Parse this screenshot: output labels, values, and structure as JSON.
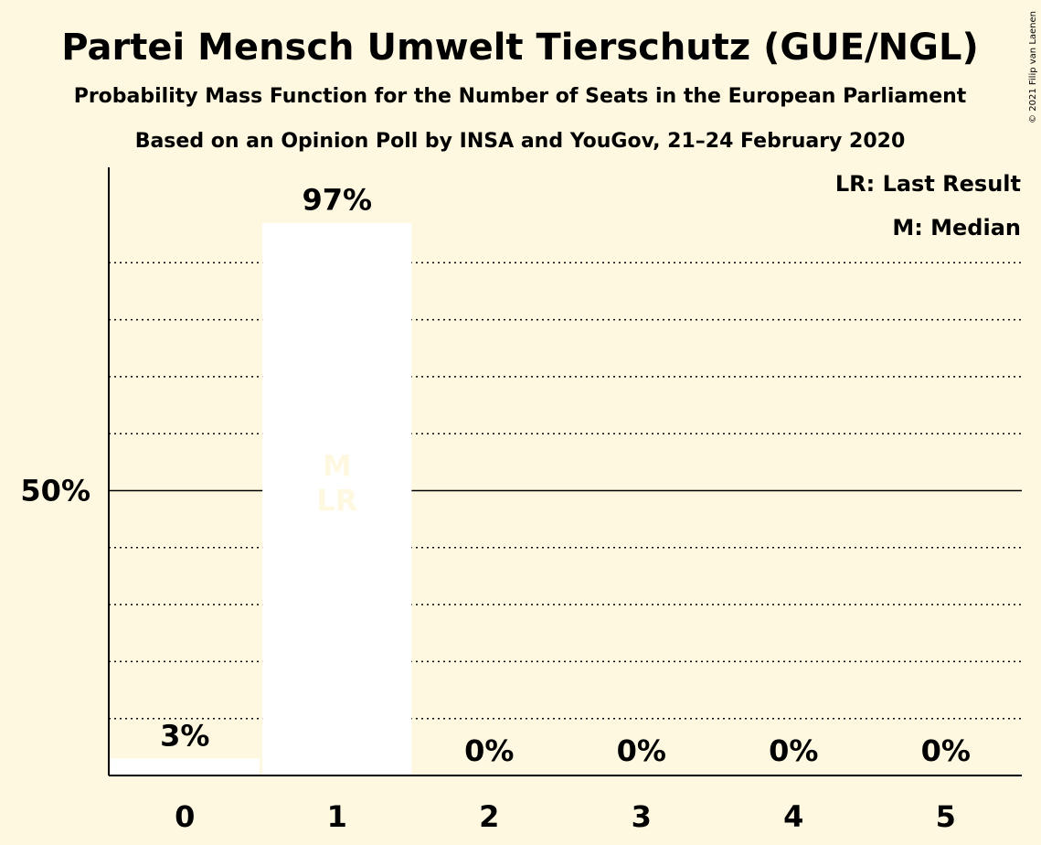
{
  "copyright": "© 2021 Filip van Laenen",
  "chart_data": {
    "type": "bar",
    "title": "Partei Mensch Umwelt Tierschutz (GUE/NGL)",
    "subtitle_1": "Probability Mass Function for the Number of Seats in the European Parliament",
    "subtitle_2": "Based on an Opinion Poll by INSA and YouGov, 21–24 February 2020",
    "categories": [
      "0",
      "1",
      "2",
      "3",
      "4",
      "5"
    ],
    "values": [
      3,
      97,
      0,
      0,
      0,
      0
    ],
    "value_labels": [
      "3%",
      "97%",
      "0%",
      "0%",
      "0%",
      "0%"
    ],
    "ylim": [
      0,
      100
    ],
    "yticks": [
      {
        "value": 50,
        "label": "50%"
      }
    ],
    "gridlines": [
      10,
      20,
      30,
      40,
      60,
      70,
      80,
      90
    ],
    "bar_markers": [
      {
        "category": "1",
        "lines": [
          "M",
          "LR"
        ]
      }
    ],
    "legend": {
      "placement": "top-right",
      "entries": [
        "LR: Last Result",
        "M: Median"
      ]
    },
    "colors": {
      "background": "#fff8e1",
      "bar": "#ffffff",
      "axis": "#000000",
      "marker_text": "#fff8e1"
    }
  }
}
